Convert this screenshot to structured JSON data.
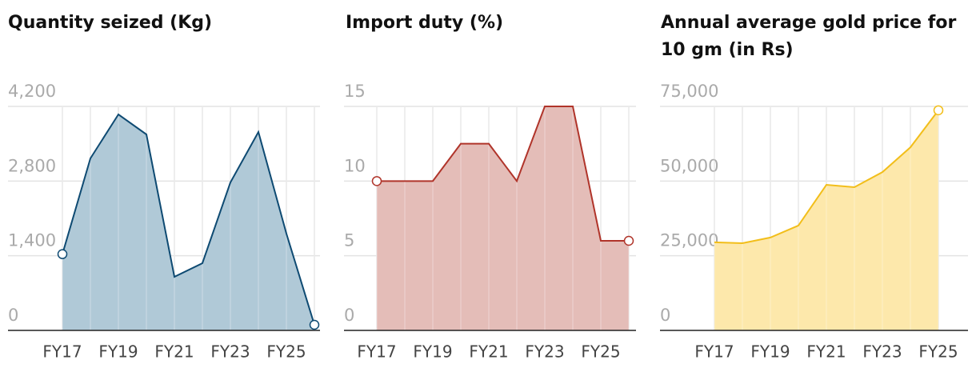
{
  "chart_data": [
    {
      "type": "area",
      "title": "Quantity seized (Kg)",
      "categories": [
        "FY17",
        null,
        "FY19",
        null,
        "FY21",
        null,
        "FY23",
        null,
        "FY25",
        null
      ],
      "values": [
        1430,
        3225,
        4050,
        3675,
        1005,
        1260,
        2775,
        3720,
        1815,
        105
      ],
      "color": "#0e4a72",
      "fill": "#b0c9d7",
      "markers": "ends",
      "ylim": [
        0,
        4200
      ],
      "yticks": [
        0,
        {
          "value": 1400,
          "label": "1,400"
        },
        {
          "value": 2800,
          "label": "2,800"
        },
        {
          "value": 4200,
          "label": "4,200"
        }
      ],
      "grid": true
    },
    {
      "type": "area",
      "title": "Import duty (%)",
      "categories": [
        "FY17",
        null,
        "FY19",
        null,
        "FY21",
        null,
        "FY23",
        null,
        "FY25",
        null
      ],
      "values": [
        10,
        10,
        10,
        12.5,
        12.5,
        10,
        15,
        15,
        6,
        6
      ],
      "color": "#b0342a",
      "fill": "#e4bdb8",
      "markers": "ends",
      "ylim": [
        0,
        15
      ],
      "yticks": [
        0,
        5,
        10,
        15
      ],
      "grid": true
    },
    {
      "type": "area",
      "title": "Annual average gold price for 10 gm (in Rs)",
      "categories": [
        "FY17",
        null,
        "FY19",
        null,
        "FY21",
        null,
        "FY23",
        null,
        "FY25"
      ],
      "values": [
        29500,
        29200,
        31100,
        35100,
        48750,
        47950,
        53000,
        61300,
        73700
      ],
      "color": "#f2be1a",
      "fill": "#fde8ab",
      "markers": "last",
      "ylim": [
        0,
        75000
      ],
      "yticks": [
        0,
        {
          "value": 25000,
          "label": "25,000"
        },
        {
          "value": 50000,
          "label": "50,000"
        },
        {
          "value": 75000,
          "label": "75,000"
        }
      ],
      "grid": true
    }
  ]
}
